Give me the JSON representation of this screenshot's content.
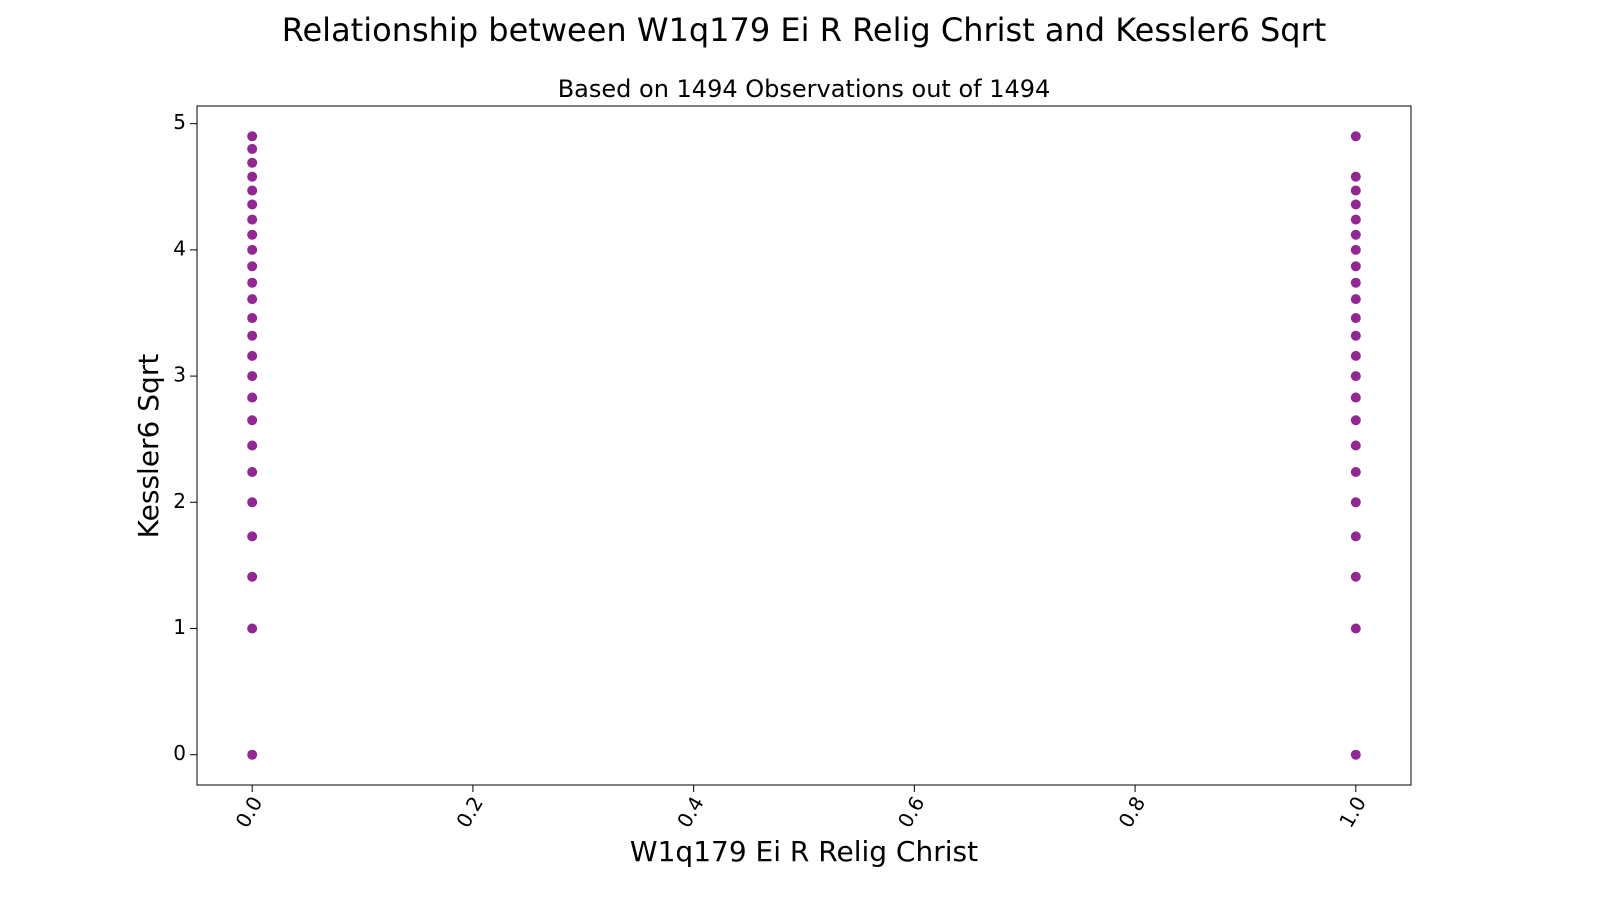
{
  "chart_data": {
    "type": "scatter",
    "title": "Relationship between W1q179 Ei R Relig Christ and Kessler6 Sqrt",
    "subtitle": "Based on 1494 Observations out of 1494",
    "x_label": "W1q179 Ei R Relig Christ",
    "y_label": "Kessler6 Sqrt",
    "color": "#800080",
    "x": [
      0,
      0,
      0,
      0,
      0,
      0,
      0,
      0,
      0,
      0,
      0,
      0,
      0,
      0,
      0,
      0,
      0,
      0,
      0,
      0,
      0,
      0,
      0,
      0,
      0,
      1,
      1,
      1,
      1,
      1,
      1,
      1,
      1,
      1,
      1,
      1,
      1,
      1,
      1,
      1,
      1,
      1,
      1,
      1,
      1,
      1,
      1,
      1
    ],
    "values": [
      0,
      1,
      1.41,
      1.73,
      2,
      2.24,
      2.45,
      2.65,
      2.83,
      3,
      3.16,
      3.32,
      3.46,
      3.61,
      3.74,
      3.87,
      4,
      4.12,
      4.24,
      4.36,
      4.47,
      4.58,
      4.69,
      4.8,
      4.9,
      0,
      1,
      1.41,
      1.73,
      2,
      2.24,
      2.45,
      2.65,
      2.83,
      3,
      3.16,
      3.32,
      3.46,
      3.61,
      3.74,
      3.87,
      4,
      4.12,
      4.24,
      4.36,
      4.47,
      4.58,
      4.9
    ],
    "xlim": [
      -0.05,
      1.05
    ],
    "ylim": [
      -0.24,
      5.14
    ],
    "xticks": [
      {
        "value": 0,
        "label": "0.0"
      },
      {
        "value": 0.2,
        "label": "0.2"
      },
      {
        "value": 0.4,
        "label": "0.4"
      },
      {
        "value": 0.6,
        "label": "0.6"
      },
      {
        "value": 0.8,
        "label": "0.8"
      },
      {
        "value": 1,
        "label": "1.0"
      }
    ],
    "yticks": [
      0,
      1,
      2,
      3,
      4,
      5
    ],
    "grid": false
  }
}
